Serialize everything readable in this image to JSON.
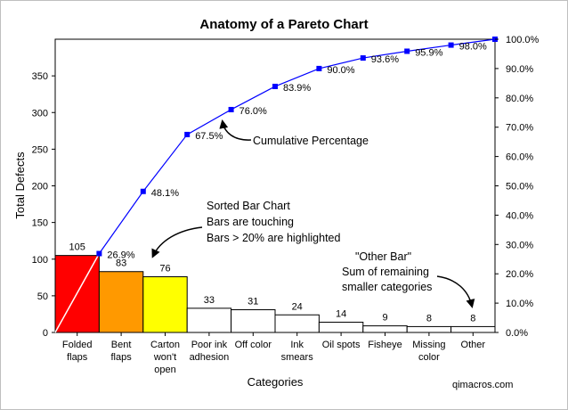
{
  "chart_data": {
    "type": "bar",
    "title": "Anatomy of a Pareto Chart",
    "xlabel": "Categories",
    "ylabel": "Total Defects",
    "ylim": [
      0,
      400
    ],
    "y2lim": [
      0,
      100
    ],
    "y_ticks": [
      "0",
      "50",
      "100",
      "150",
      "200",
      "250",
      "300",
      "350"
    ],
    "y2_ticks": [
      "0.0%",
      "10.0%",
      "20.0%",
      "30.0%",
      "40.0%",
      "50.0%",
      "60.0%",
      "70.0%",
      "80.0%",
      "90.0%",
      "100.0%"
    ],
    "categories": [
      [
        "Folded",
        "flaps"
      ],
      [
        "Bent",
        "flaps"
      ],
      [
        "Carton",
        "won't",
        "open"
      ],
      [
        "Poor ink",
        "adhesion"
      ],
      [
        "Off color"
      ],
      [
        "Ink",
        "smears"
      ],
      [
        "Oil spots"
      ],
      [
        "Fisheye"
      ],
      [
        "Missing",
        "color"
      ],
      [
        "Other"
      ]
    ],
    "values": [
      105,
      83,
      76,
      33,
      31,
      24,
      14,
      9,
      8,
      8
    ],
    "bar_colors": [
      "#ff0000",
      "#ff9900",
      "#ffff00",
      "#ffffff",
      "#ffffff",
      "#ffffff",
      "#ffffff",
      "#ffffff",
      "#ffffff",
      "#ffffff"
    ],
    "cumulative_percent": [
      26.9,
      48.1,
      67.5,
      76.0,
      83.9,
      90.0,
      93.6,
      95.9,
      98.0,
      100.0
    ],
    "cumulative_labels": [
      "26.9%",
      "48.1%",
      "67.5%",
      "76.0%",
      "83.9%",
      "90.0%",
      "93.6%",
      "95.9%",
      "98.0%",
      ""
    ],
    "line_color": "#0000ff",
    "grid": false
  },
  "annotations": {
    "cumulative": "Cumulative Percentage",
    "sorted_title": "Sorted Bar Chart",
    "sorted_line1": "Bars are touching",
    "sorted_line2": "Bars > 20% are highlighted",
    "other_title": "\"Other Bar\"",
    "other_line1": "Sum of remaining",
    "other_line2": "smaller categories"
  },
  "credit": "qimacros.com"
}
